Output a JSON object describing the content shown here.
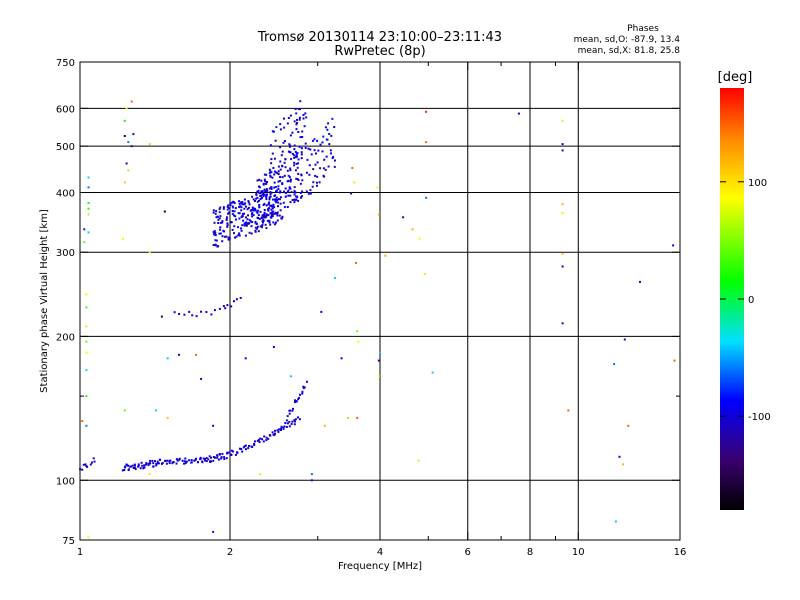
{
  "chart_data": {
    "type": "scatter",
    "title": "Tromsø 20130114 23:10:00–23:11:43",
    "subtitle": "RwPretec (8p)",
    "xlabel": "Frequency [MHz]",
    "ylabel": "Stationary phase Virtual Height [km]",
    "xscale": "log",
    "yscale": "log",
    "xlim": [
      1,
      16
    ],
    "ylim": [
      75,
      750
    ],
    "grid": true,
    "xticks": [
      1,
      2,
      4,
      6,
      8,
      10,
      16
    ],
    "xgrid": [
      2,
      4,
      6,
      8,
      10
    ],
    "xminor": [
      3,
      5,
      7,
      9
    ],
    "yticks": [
      75,
      100,
      200,
      300,
      400,
      500,
      600,
      750
    ],
    "yminor": [
      150
    ],
    "stats": {
      "heading": "Phases",
      "line1": "mean, sd,O: -87.9, 13.4",
      "line2": "mean, sd,X: 81.8, 25.8"
    },
    "colorbar": {
      "label": "[deg]",
      "range": [
        -180,
        180
      ],
      "ticks": [
        100,
        0,
        -100
      ]
    },
    "traces": [
      {
        "x_range": [
          1.0,
          1.07
        ],
        "y_range": [
          106,
          110
        ],
        "n": 10,
        "phase": -100,
        "seed": 1
      },
      {
        "x_range": [
          1.22,
          1.45
        ],
        "y_range": [
          106,
          109
        ],
        "n": 45,
        "phase": -100,
        "seed": 2
      },
      {
        "x_range": [
          1.45,
          1.75
        ],
        "y_range": [
          109,
          110
        ],
        "n": 35,
        "phase": -100,
        "seed": 3
      },
      {
        "x_range": [
          1.75,
          2.0
        ],
        "y_range": [
          110,
          113
        ],
        "n": 35,
        "phase": -100,
        "seed": 4
      },
      {
        "x_range": [
          2.0,
          2.45
        ],
        "y_range": [
          113,
          125
        ],
        "n": 35,
        "phase": -100,
        "seed": 5
      },
      {
        "x_range": [
          2.45,
          2.75
        ],
        "y_range": [
          125,
          135
        ],
        "n": 25,
        "phase": -100,
        "seed": 6
      },
      {
        "x_range": [
          2.6,
          2.85
        ],
        "y_range": [
          135,
          160
        ],
        "n": 20,
        "phase": -100,
        "seed": 7
      },
      {
        "x_range": [
          1.55,
          1.95
        ],
        "y_range": [
          222,
          226
        ],
        "n": 12,
        "phase": -100,
        "seed": 8
      },
      {
        "x_range": [
          1.95,
          2.1
        ],
        "y_range": [
          230,
          238
        ],
        "n": 6,
        "phase": -100,
        "seed": 9
      }
    ],
    "clusters": [
      {
        "x_range": [
          1.85,
          2.55
        ],
        "y_range": [
          305,
          420
        ],
        "n": 260,
        "phase": -100,
        "seed": 11
      },
      {
        "x_range": [
          2.25,
          2.8
        ],
        "y_range": [
          330,
          500
        ],
        "n": 160,
        "phase": -100,
        "seed": 12
      },
      {
        "x_range": [
          2.4,
          2.85
        ],
        "y_range": [
          420,
          640
        ],
        "n": 70,
        "phase": -100,
        "seed": 13
      },
      {
        "x_range": [
          2.85,
          3.25
        ],
        "y_range": [
          380,
          590
        ],
        "n": 55,
        "phase": -100,
        "seed": 14
      }
    ],
    "points": [
      {
        "x": 1.02,
        "y": 335,
        "phase": -80
      },
      {
        "x": 1.02,
        "y": 315,
        "phase": 40
      },
      {
        "x": 1.04,
        "y": 430,
        "phase": -40
      },
      {
        "x": 1.04,
        "y": 410,
        "phase": -60
      },
      {
        "x": 1.04,
        "y": 380,
        "phase": 10
      },
      {
        "x": 1.04,
        "y": 370,
        "phase": 20
      },
      {
        "x": 1.04,
        "y": 360,
        "phase": 60
      },
      {
        "x": 1.04,
        "y": 330,
        "phase": -40
      },
      {
        "x": 1.03,
        "y": 245,
        "phase": 90
      },
      {
        "x": 1.03,
        "y": 230,
        "phase": 30
      },
      {
        "x": 1.03,
        "y": 210,
        "phase": 70
      },
      {
        "x": 1.03,
        "y": 195,
        "phase": 40
      },
      {
        "x": 1.03,
        "y": 185,
        "phase": 90
      },
      {
        "x": 1.03,
        "y": 170,
        "phase": -30
      },
      {
        "x": 1.03,
        "y": 150,
        "phase": 20
      },
      {
        "x": 1.03,
        "y": 130,
        "phase": -60
      },
      {
        "x": 1.04,
        "y": 76,
        "phase": 80
      },
      {
        "x": 1.01,
        "y": 133,
        "phase": 150
      },
      {
        "x": 1.27,
        "y": 620,
        "phase": 150
      },
      {
        "x": 1.24,
        "y": 600,
        "phase": 90
      },
      {
        "x": 1.23,
        "y": 565,
        "phase": 10
      },
      {
        "x": 1.23,
        "y": 525,
        "phase": -160
      },
      {
        "x": 1.25,
        "y": 510,
        "phase": -60
      },
      {
        "x": 1.24,
        "y": 460,
        "phase": -100
      },
      {
        "x": 1.25,
        "y": 445,
        "phase": 60
      },
      {
        "x": 1.23,
        "y": 420,
        "phase": 110
      },
      {
        "x": 1.22,
        "y": 320,
        "phase": 90
      },
      {
        "x": 1.23,
        "y": 140,
        "phase": 40
      },
      {
        "x": 1.28,
        "y": 530,
        "phase": -110
      },
      {
        "x": 1.27,
        "y": 500,
        "phase": -130
      },
      {
        "x": 1.38,
        "y": 505,
        "phase": 60
      },
      {
        "x": 1.38,
        "y": 300,
        "phase": 90
      },
      {
        "x": 1.38,
        "y": 103,
        "phase": 100
      },
      {
        "x": 1.48,
        "y": 365,
        "phase": -170
      },
      {
        "x": 1.46,
        "y": 220,
        "phase": -150
      },
      {
        "x": 1.5,
        "y": 180,
        "phase": -40
      },
      {
        "x": 1.58,
        "y": 183,
        "phase": -100
      },
      {
        "x": 1.42,
        "y": 140,
        "phase": -40
      },
      {
        "x": 1.5,
        "y": 135,
        "phase": 110
      },
      {
        "x": 1.71,
        "y": 183,
        "phase": 150
      },
      {
        "x": 1.75,
        "y": 163,
        "phase": -110
      },
      {
        "x": 1.85,
        "y": 130,
        "phase": -100
      },
      {
        "x": 1.85,
        "y": 78,
        "phase": -80
      },
      {
        "x": 2.15,
        "y": 180,
        "phase": -90
      },
      {
        "x": 2.3,
        "y": 103,
        "phase": 100
      },
      {
        "x": 2.45,
        "y": 190,
        "phase": -100
      },
      {
        "x": 2.65,
        "y": 165,
        "phase": -40
      },
      {
        "x": 2.92,
        "y": 100,
        "phase": -120
      },
      {
        "x": 2.92,
        "y": 103,
        "phase": -60
      },
      {
        "x": 3.05,
        "y": 225,
        "phase": -90
      },
      {
        "x": 3.1,
        "y": 130,
        "phase": 120
      },
      {
        "x": 3.25,
        "y": 265,
        "phase": -40
      },
      {
        "x": 3.35,
        "y": 180,
        "phase": -90
      },
      {
        "x": 3.45,
        "y": 135,
        "phase": 60
      },
      {
        "x": 3.5,
        "y": 398,
        "phase": -120
      },
      {
        "x": 3.52,
        "y": 450,
        "phase": 150
      },
      {
        "x": 3.55,
        "y": 420,
        "phase": 100
      },
      {
        "x": 3.58,
        "y": 285,
        "phase": 150
      },
      {
        "x": 3.6,
        "y": 205,
        "phase": 40
      },
      {
        "x": 3.62,
        "y": 195,
        "phase": 90
      },
      {
        "x": 3.6,
        "y": 135,
        "phase": 150
      },
      {
        "x": 3.95,
        "y": 410,
        "phase": 90
      },
      {
        "x": 3.98,
        "y": 360,
        "phase": 120
      },
      {
        "x": 4.0,
        "y": 185,
        "phase": -40
      },
      {
        "x": 3.98,
        "y": 178,
        "phase": -100
      },
      {
        "x": 3.98,
        "y": 165,
        "phase": 90
      },
      {
        "x": 4.1,
        "y": 295,
        "phase": 120
      },
      {
        "x": 4.45,
        "y": 355,
        "phase": -110
      },
      {
        "x": 4.65,
        "y": 335,
        "phase": 120
      },
      {
        "x": 4.8,
        "y": 320,
        "phase": 90
      },
      {
        "x": 4.78,
        "y": 110,
        "phase": 100
      },
      {
        "x": 4.95,
        "y": 590,
        "phase": 170
      },
      {
        "x": 4.95,
        "y": 510,
        "phase": 150
      },
      {
        "x": 4.95,
        "y": 390,
        "phase": -60
      },
      {
        "x": 4.92,
        "y": 270,
        "phase": 100
      },
      {
        "x": 5.1,
        "y": 168,
        "phase": -40
      },
      {
        "x": 7.6,
        "y": 585,
        "phase": -100
      },
      {
        "x": 9.3,
        "y": 565,
        "phase": 100
      },
      {
        "x": 9.3,
        "y": 505,
        "phase": -100
      },
      {
        "x": 9.3,
        "y": 490,
        "phase": -100
      },
      {
        "x": 9.3,
        "y": 378,
        "phase": 120
      },
      {
        "x": 9.3,
        "y": 362,
        "phase": 100
      },
      {
        "x": 9.3,
        "y": 298,
        "phase": 120
      },
      {
        "x": 9.3,
        "y": 280,
        "phase": -100
      },
      {
        "x": 9.3,
        "y": 213,
        "phase": -100
      },
      {
        "x": 9.55,
        "y": 140,
        "phase": 150
      },
      {
        "x": 11.8,
        "y": 175,
        "phase": -60
      },
      {
        "x": 11.9,
        "y": 82,
        "phase": -40
      },
      {
        "x": 12.1,
        "y": 112,
        "phase": -100
      },
      {
        "x": 12.3,
        "y": 108,
        "phase": 120
      },
      {
        "x": 12.4,
        "y": 197,
        "phase": -100
      },
      {
        "x": 12.6,
        "y": 130,
        "phase": 150
      },
      {
        "x": 13.3,
        "y": 260,
        "phase": -100
      },
      {
        "x": 15.5,
        "y": 310,
        "phase": -100
      },
      {
        "x": 15.6,
        "y": 178,
        "phase": 150
      }
    ]
  }
}
